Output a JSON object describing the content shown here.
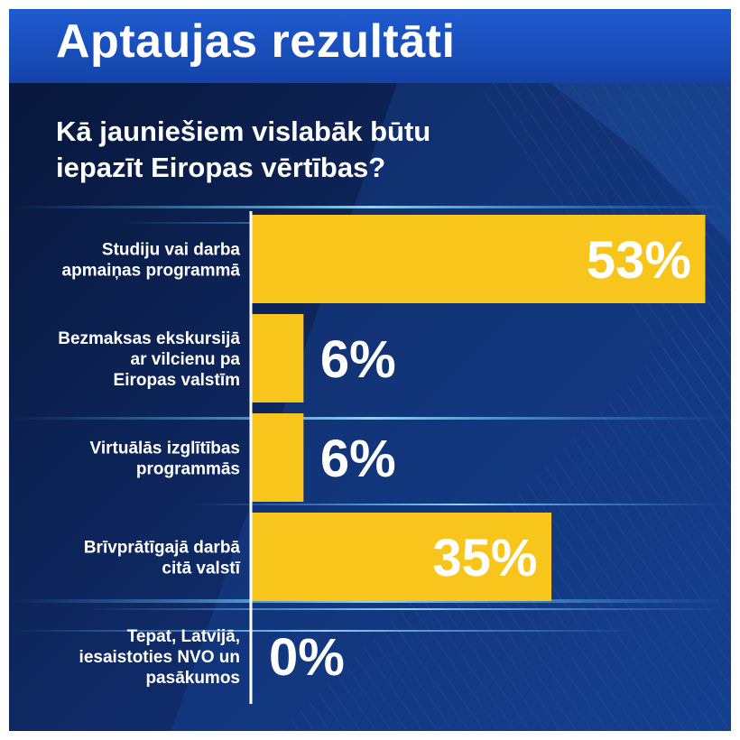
{
  "header": {
    "title": "Aptaujas rezultāti"
  },
  "chart_data": {
    "type": "bar",
    "orientation": "horizontal",
    "title": "Kā jauniešiem vislabāk būtu iepazīt Eiropas vērtības?",
    "title_lines": [
      "Kā jauniešiem vislabāk būtu",
      "iepazīt Eiropas vērtības?"
    ],
    "categories": [
      "Studiju vai darba apmaiņas programmā",
      "Bezmaksas ekskursijā ar vilcienu pa Eiropas valstīm",
      "Virtuālās izglītības programmās",
      "Brīvprātīgajā darbā citā valstī",
      "Tepat, Latvijā, iesaistoties NVO un pasākumos"
    ],
    "category_lines": [
      [
        "Studiju vai darba",
        "apmaiņas programmā"
      ],
      [
        "Bezmaksas ekskursijā",
        "ar vilcienu pa",
        "Eiropas valstīm"
      ],
      [
        "Virtuālās izglītības",
        "programmās"
      ],
      [
        "Brīvprātīgajā darbā",
        "citā valstī"
      ],
      [
        "Tepat, Latvijā,",
        "iesaistoties NVO un",
        "pasākumos"
      ]
    ],
    "values": [
      53,
      6,
      6,
      35,
      0
    ],
    "value_labels": [
      "53%",
      "6%",
      "6%",
      "35%",
      "0%"
    ],
    "unit": "%",
    "xlim": [
      0,
      53
    ],
    "grid": false,
    "colors": {
      "bar": "#f8c51c",
      "value_text": "#ffffff",
      "axis": "#ffffff"
    }
  }
}
